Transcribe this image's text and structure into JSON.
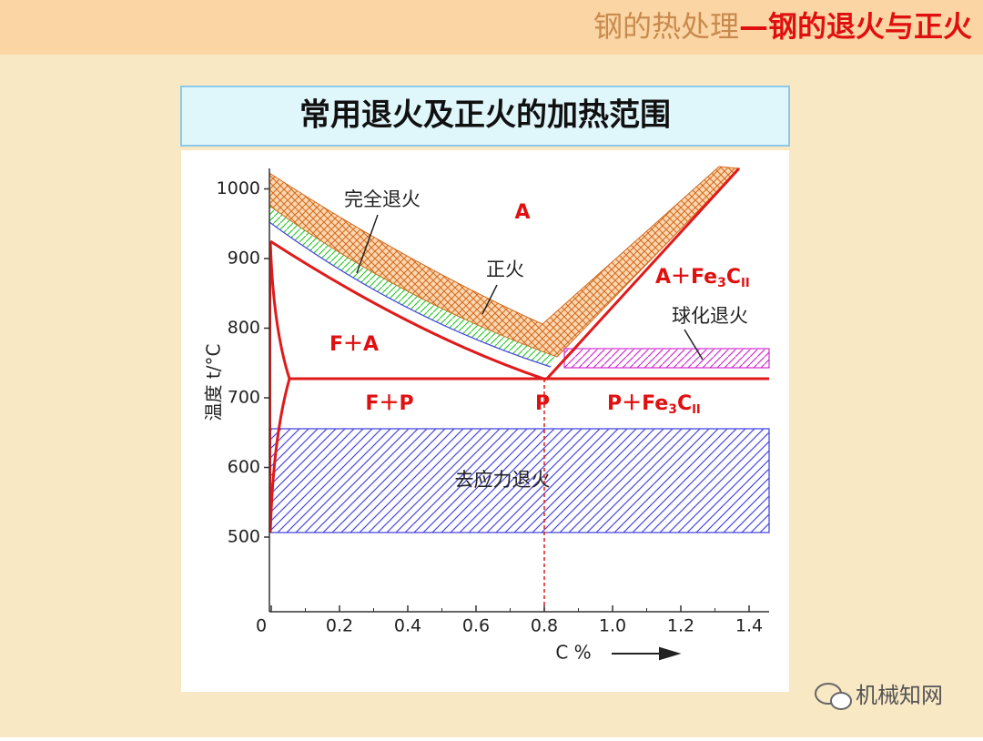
{
  "header": {
    "main": "钢的热处理",
    "sub": "—钢的退火与正火"
  },
  "title": "常用退火及正火的加热范围",
  "y_axis_label": "温度 t/°C",
  "x_axis_label": "C %",
  "y_ticks": [
    "500",
    "600",
    "700",
    "800",
    "900",
    "1000"
  ],
  "x_ticks": [
    "0",
    "0.2",
    "0.4",
    "0.6",
    "0.8",
    "1.0",
    "1.2",
    "1.4"
  ],
  "phases": {
    "a": "A",
    "fa": "F＋A",
    "fp": "F＋P",
    "p": "P",
    "a_fe3c": {
      "base": "A＋Fe",
      "sub": "3",
      "mid": "C",
      "sub2": "II"
    },
    "p_fe3c": {
      "base": "P＋Fe",
      "sub": "3",
      "mid": "C",
      "sub2": "II"
    }
  },
  "processes": {
    "full_anneal": "完全退火",
    "normalize": "正火",
    "spheroidize": "球化退火",
    "stress_relief": "去应力退火"
  },
  "watermark": "机械知网"
}
